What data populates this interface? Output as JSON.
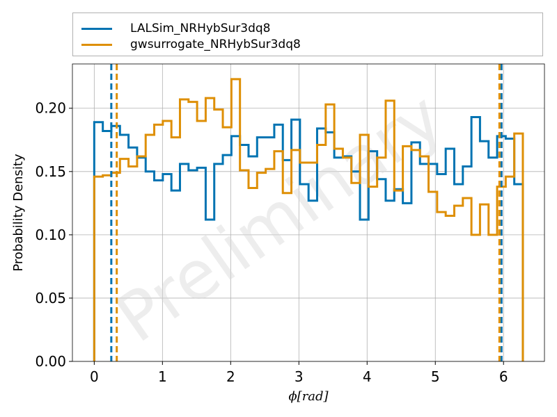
{
  "chart_data": {
    "type": "step-histogram",
    "xlabel": "ϕ[rad]",
    "ylabel": "Probability Density",
    "watermark": "Preliminary",
    "xlim": [
      -0.32,
      6.6
    ],
    "ylim": [
      0,
      0.235
    ],
    "xticks": [
      "0",
      "1",
      "2",
      "3",
      "4",
      "5",
      "6"
    ],
    "xtick_values": [
      0,
      1,
      2,
      3,
      4,
      5,
      6
    ],
    "yticks": [
      "0.00",
      "0.05",
      "0.10",
      "0.15",
      "0.20"
    ],
    "ytick_values": [
      0,
      0.05,
      0.1,
      0.15,
      0.2
    ],
    "grid": true,
    "legend_position": "above-plot",
    "bin_range": [
      0,
      6.2832
    ],
    "series": [
      {
        "name": "LALSim_NRHybSur3dq8",
        "color": "#0173b2",
        "values": [
          0.189,
          0.182,
          0.186,
          0.179,
          0.169,
          0.161,
          0.15,
          0.143,
          0.148,
          0.135,
          0.156,
          0.151,
          0.153,
          0.112,
          0.156,
          0.163,
          0.178,
          0.171,
          0.162,
          0.177,
          0.177,
          0.187,
          0.159,
          0.191,
          0.14,
          0.127,
          0.184,
          0.181,
          0.161,
          0.162,
          0.15,
          0.112,
          0.166,
          0.144,
          0.127,
          0.136,
          0.125,
          0.173,
          0.156,
          0.156,
          0.148,
          0.168,
          0.14,
          0.154,
          0.193,
          0.174,
          0.161,
          0.178,
          0.176,
          0.14
        ],
        "credible_interval": [
          0.25,
          5.97
        ]
      },
      {
        "name": "gwsurrogate_NRHybSur3dq8",
        "color": "#de8f05",
        "values": [
          0.146,
          0.147,
          0.149,
          0.16,
          0.154,
          0.162,
          0.179,
          0.187,
          0.19,
          0.177,
          0.207,
          0.205,
          0.19,
          0.208,
          0.199,
          0.185,
          0.223,
          0.151,
          0.137,
          0.149,
          0.152,
          0.166,
          0.133,
          0.167,
          0.157,
          0.157,
          0.171,
          0.203,
          0.168,
          0.161,
          0.141,
          0.179,
          0.138,
          0.161,
          0.206,
          0.135,
          0.17,
          0.167,
          0.162,
          0.134,
          0.118,
          0.115,
          0.123,
          0.129,
          0.1,
          0.124,
          0.1,
          0.138,
          0.146,
          0.18
        ],
        "credible_interval": [
          0.33,
          5.94
        ]
      }
    ]
  }
}
